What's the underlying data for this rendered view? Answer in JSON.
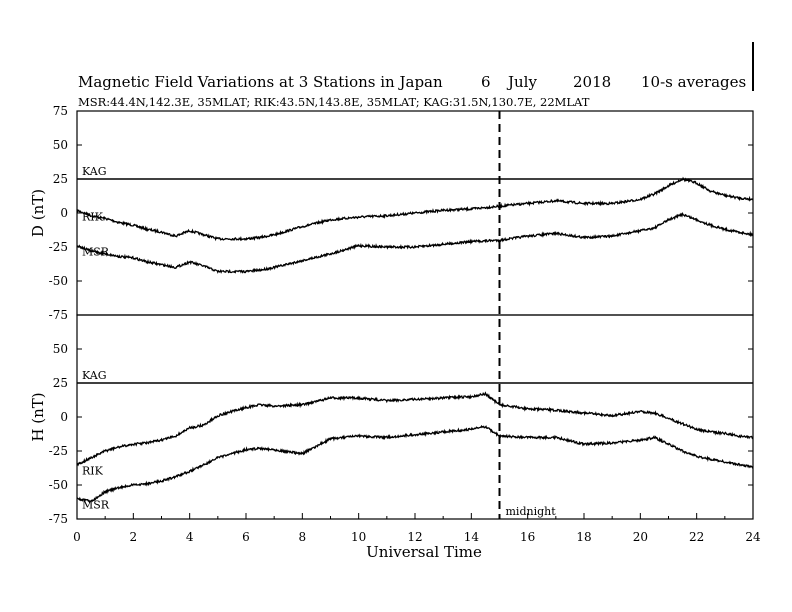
{
  "header": {
    "title": "Magnetic Field Variations at 3 Stations in Japan",
    "day": "6",
    "month": "July",
    "year": "2018",
    "averaging": "10-s averages",
    "stations": "MSR:44.4N,142.3E, 35MLAT;  RIK:43.5N,143.8E, 35MLAT;  KAG:31.5N,130.7E, 22MLAT"
  },
  "chart_data": [
    {
      "type": "line",
      "ylabel": "D (nT)",
      "ylim": [
        -75,
        75
      ],
      "yticks": [
        -75,
        -50,
        -25,
        0,
        25,
        50,
        75
      ],
      "xlim": [
        0,
        24
      ],
      "series": [
        {
          "name": "KAG",
          "x": [
            0,
            24
          ],
          "values": [
            25,
            25
          ]
        },
        {
          "name": "RIK",
          "x": [
            0,
            0.5,
            1,
            1.5,
            2,
            2.5,
            3,
            3.5,
            4,
            4.5,
            5,
            5.5,
            6,
            6.5,
            7,
            8,
            9,
            10,
            11,
            12,
            13,
            14,
            15,
            16,
            17,
            18,
            19,
            20,
            20.5,
            21,
            21.5,
            22,
            22.5,
            23,
            23.5,
            24
          ],
          "values": [
            2,
            -2,
            -4,
            -7,
            -9,
            -12,
            -14,
            -17,
            -13,
            -16,
            -19,
            -19,
            -19,
            -18,
            -16,
            -10,
            -5,
            -3,
            -2,
            0,
            2,
            3,
            5,
            7,
            9,
            7,
            7,
            10,
            14,
            20,
            25,
            22,
            16,
            13,
            11,
            10
          ]
        },
        {
          "name": "MSR",
          "x": [
            0,
            0.5,
            1,
            1.5,
            2,
            2.5,
            3,
            3.5,
            4,
            4.5,
            5,
            5.5,
            6,
            6.5,
            7,
            8,
            9,
            10,
            11,
            12,
            13,
            14,
            15,
            16,
            17,
            18,
            19,
            20,
            20.5,
            21,
            21.5,
            22,
            22.5,
            23,
            23.5,
            24
          ],
          "values": [
            -24,
            -28,
            -30,
            -32,
            -33,
            -36,
            -38,
            -40,
            -36,
            -39,
            -43,
            -43,
            -43,
            -42,
            -40,
            -35,
            -30,
            -24,
            -25,
            -25,
            -23,
            -21,
            -20,
            -17,
            -15,
            -18,
            -17,
            -13,
            -11,
            -5,
            -1,
            -5,
            -9,
            -12,
            -14,
            -16
          ]
        }
      ]
    },
    {
      "type": "line",
      "ylabel": "H (nT)",
      "ylim": [
        -75,
        75
      ],
      "yticks": [
        -75,
        -50,
        -25,
        0,
        25,
        50,
        75
      ],
      "xlim": [
        0,
        24
      ],
      "series": [
        {
          "name": "KAG",
          "x": [
            0,
            24
          ],
          "values": [
            25,
            25
          ]
        },
        {
          "name": "RIK",
          "x": [
            0,
            0.5,
            1,
            1.5,
            2,
            2.5,
            3,
            3.5,
            4,
            4.5,
            5,
            5.5,
            6,
            6.5,
            7,
            8,
            9,
            10,
            11,
            12,
            13,
            14,
            14.5,
            15,
            16,
            17,
            18,
            19,
            20,
            20.5,
            21,
            21.5,
            22,
            22.5,
            23,
            23.5,
            24
          ],
          "values": [
            -35,
            -30,
            -25,
            -22,
            -20,
            -19,
            -17,
            -14,
            -8,
            -6,
            1,
            4,
            7,
            9,
            8,
            9,
            14,
            14,
            12,
            13,
            14,
            15,
            17,
            9,
            6,
            5,
            3,
            1,
            4,
            3,
            -1,
            -5,
            -9,
            -11,
            -12,
            -14,
            -15
          ]
        },
        {
          "name": "MSR",
          "x": [
            0,
            0.5,
            1,
            1.5,
            2,
            2.5,
            3,
            3.5,
            4,
            4.5,
            5,
            5.5,
            6,
            6.5,
            7,
            8,
            9,
            10,
            11,
            12,
            13,
            14,
            14.5,
            15,
            16,
            17,
            18,
            19,
            20,
            20.5,
            21,
            21.5,
            22,
            22.5,
            23,
            23.5,
            24
          ],
          "values": [
            -60,
            -62,
            -55,
            -52,
            -50,
            -49,
            -47,
            -44,
            -40,
            -35,
            -30,
            -27,
            -24,
            -23,
            -24,
            -27,
            -16,
            -14,
            -15,
            -13,
            -11,
            -9,
            -7,
            -14,
            -15,
            -15,
            -20,
            -19,
            -17,
            -15,
            -20,
            -25,
            -29,
            -31,
            -33,
            -35,
            -37
          ]
        }
      ]
    }
  ],
  "x_axis": {
    "label": "Universal Time",
    "ticks": [
      0,
      2,
      4,
      6,
      8,
      10,
      12,
      14,
      16,
      18,
      20,
      22,
      24
    ]
  },
  "annotations": {
    "midnight_time": 15,
    "midnight_label": "midnight",
    "line_color": "#000000"
  }
}
